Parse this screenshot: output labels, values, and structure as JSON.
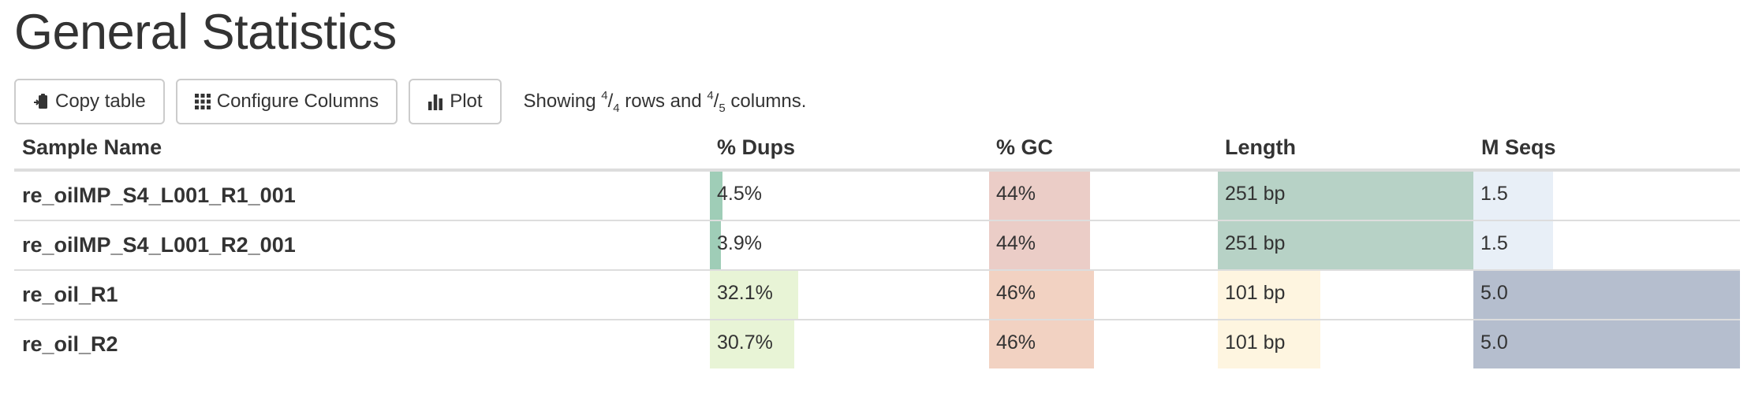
{
  "title": "General Statistics",
  "toolbar": {
    "copy_label": "Copy table",
    "configure_label": "Configure Columns",
    "plot_label": "Plot",
    "showing_prefix": "Showing ",
    "rows_shown": "4",
    "rows_total": "4",
    "rows_text": " rows and ",
    "cols_shown": "4",
    "cols_total": "5",
    "cols_text": " columns."
  },
  "columns": {
    "sample": "Sample Name",
    "dups": "% Dups",
    "gc": "% GC",
    "length": "Length",
    "mseqs": "M Seqs"
  },
  "colors": {
    "dups_low": "#9fcdb7",
    "dups_high": "#e8f4d6",
    "gc_44": "#ebcdc7",
    "gc_46": "#f2d2c2",
    "length_251": "#b7d2c6",
    "length_101": "#fef5e0",
    "mseqs_1_5": "#e8eff7",
    "mseqs_5_0": "#b5bece"
  },
  "rows": [
    {
      "sample": "re_oilMP_S4_L001_R1_001",
      "dups": "4.5%",
      "dups_fill": 0.045,
      "dups_color": "#9fcdb7",
      "gc": "44%",
      "gc_fill": 0.44,
      "gc_color": "#ebcdc7",
      "length": "251 bp",
      "length_fill": 1.0,
      "length_color": "#b7d2c6",
      "mseqs": "1.5",
      "mseqs_fill": 0.3,
      "mseqs_color": "#e8eff7"
    },
    {
      "sample": "re_oilMP_S4_L001_R2_001",
      "dups": "3.9%",
      "dups_fill": 0.039,
      "dups_color": "#9fcdb7",
      "gc": "44%",
      "gc_fill": 0.44,
      "gc_color": "#ebcdc7",
      "length": "251 bp",
      "length_fill": 1.0,
      "length_color": "#b7d2c6",
      "mseqs": "1.5",
      "mseqs_fill": 0.3,
      "mseqs_color": "#e8eff7"
    },
    {
      "sample": "re_oil_R1",
      "dups": "32.1%",
      "dups_fill": 0.321,
      "dups_color": "#e8f4d6",
      "gc": "46%",
      "gc_fill": 0.46,
      "gc_color": "#f2d2c2",
      "length": "101 bp",
      "length_fill": 0.402,
      "length_color": "#fef5e0",
      "mseqs": "5.0",
      "mseqs_fill": 1.0,
      "mseqs_color": "#b5bece"
    },
    {
      "sample": "re_oil_R2",
      "dups": "30.7%",
      "dups_fill": 0.307,
      "dups_color": "#e8f4d6",
      "gc": "46%",
      "gc_fill": 0.46,
      "gc_color": "#f2d2c2",
      "length": "101 bp",
      "length_fill": 0.402,
      "length_color": "#fef5e0",
      "mseqs": "5.0",
      "mseqs_fill": 1.0,
      "mseqs_color": "#b5bece"
    }
  ]
}
